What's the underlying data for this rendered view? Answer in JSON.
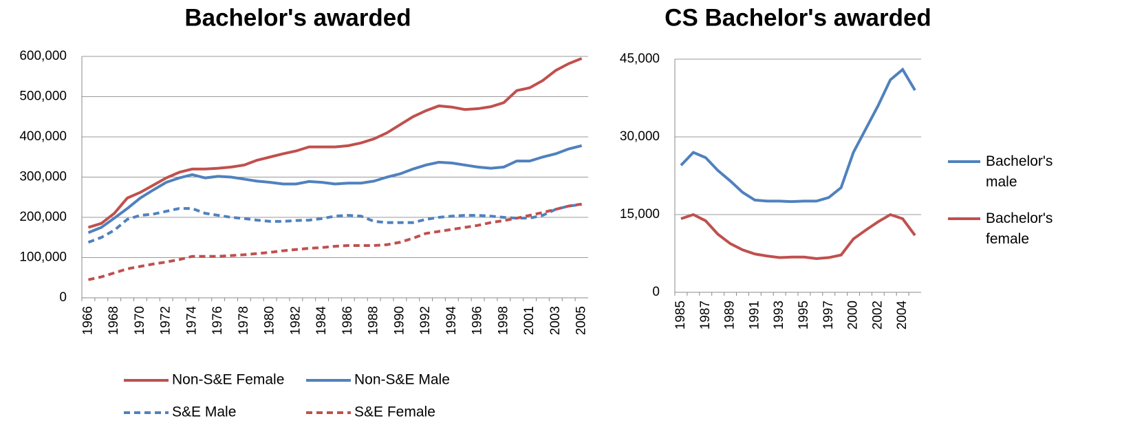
{
  "chart_data": [
    {
      "type": "line",
      "title": "Bachelor's awarded",
      "categories": [
        "1966",
        null,
        "1968",
        null,
        "1970",
        null,
        "1972",
        null,
        "1974",
        null,
        "1976",
        null,
        "1978",
        null,
        "1980",
        null,
        "1982",
        null,
        "1984",
        null,
        "1986",
        null,
        "1988",
        null,
        "1990",
        null,
        "1992",
        null,
        "1994",
        null,
        "1996",
        null,
        "1998",
        null,
        "2001",
        null,
        "2003",
        null,
        "2005"
      ],
      "series": [
        {
          "name": "Non-S&E Female",
          "color": "#c0504d",
          "dashed": false,
          "values": [
            175000,
            185000,
            210000,
            248000,
            262000,
            280000,
            298000,
            312000,
            320000,
            320000,
            322000,
            325000,
            330000,
            342000,
            350000,
            358000,
            365000,
            375000,
            375000,
            375000,
            378000,
            385000,
            395000,
            410000,
            430000,
            450000,
            465000,
            477000,
            474000,
            468000,
            470000,
            475000,
            485000,
            515000,
            522000,
            540000,
            565000,
            582000,
            595000
          ]
        },
        {
          "name": "Non-S&E Male",
          "color": "#4f81bd",
          "dashed": false,
          "values": [
            162000,
            175000,
            198000,
            222000,
            248000,
            268000,
            287000,
            298000,
            306000,
            298000,
            302000,
            300000,
            295000,
            290000,
            287000,
            283000,
            283000,
            289000,
            287000,
            283000,
            285000,
            285000,
            290000,
            300000,
            308000,
            320000,
            330000,
            337000,
            335000,
            330000,
            325000,
            322000,
            325000,
            340000,
            340000,
            350000,
            358000,
            370000,
            378000
          ]
        },
        {
          "name": "S&E Male",
          "color": "#4f81bd",
          "dashed": true,
          "values": [
            138000,
            150000,
            168000,
            195000,
            205000,
            208000,
            215000,
            222000,
            222000,
            210000,
            205000,
            200000,
            197000,
            193000,
            190000,
            190000,
            192000,
            193000,
            197000,
            203000,
            205000,
            203000,
            190000,
            187000,
            187000,
            187000,
            195000,
            200000,
            203000,
            205000,
            205000,
            203000,
            200000,
            198000,
            198000,
            205000,
            220000,
            228000,
            232000
          ]
        },
        {
          "name": "S&E Female",
          "color": "#c0504d",
          "dashed": true,
          "values": [
            45000,
            52000,
            62000,
            72000,
            78000,
            84000,
            89000,
            95000,
            103000,
            103000,
            103000,
            105000,
            107000,
            110000,
            113000,
            117000,
            120000,
            123000,
            125000,
            128000,
            130000,
            130000,
            130000,
            132000,
            138000,
            148000,
            160000,
            165000,
            170000,
            175000,
            180000,
            187000,
            192000,
            198000,
            205000,
            212000,
            220000,
            228000,
            233000
          ]
        }
      ],
      "ylim": [
        0,
        600000
      ],
      "yticks": [
        0,
        {
          "value": 100000,
          "label": "100,000"
        },
        {
          "value": 200000,
          "label": "200,000"
        },
        {
          "value": 300000,
          "label": "300,000"
        },
        {
          "value": 400000,
          "label": "400,000"
        },
        {
          "value": 500000,
          "label": "500,000"
        },
        {
          "value": 600000,
          "label": "600,000"
        }
      ],
      "grid": true,
      "legend": "bottom"
    },
    {
      "type": "line",
      "title": "CS Bachelor's awarded",
      "categories": [
        "1985",
        null,
        "1987",
        null,
        "1989",
        null,
        "1991",
        null,
        "1993",
        null,
        "1995",
        null,
        "1997",
        null,
        "2000",
        null,
        "2002",
        null,
        "2004",
        null
      ],
      "series": [
        {
          "name": "Bachelor's male",
          "color": "#4f81bd",
          "dashed": false,
          "values": [
            24500,
            27000,
            26000,
            23500,
            21500,
            19300,
            17800,
            17600,
            17600,
            17500,
            17600,
            17600,
            18300,
            20200,
            27000,
            31500,
            36000,
            41000,
            43000,
            39000
          ]
        },
        {
          "name": "Bachelor's female",
          "color": "#c0504d",
          "dashed": false,
          "values": [
            14200,
            15000,
            13800,
            11200,
            9400,
            8200,
            7400,
            7000,
            6700,
            6800,
            6800,
            6500,
            6700,
            7200,
            10300,
            12000,
            13600,
            15000,
            14200,
            11000
          ]
        }
      ],
      "ylim": [
        0,
        45000
      ],
      "yticks": [
        0,
        {
          "value": 15000,
          "label": "15,000"
        },
        {
          "value": 30000,
          "label": "30,000"
        },
        {
          "value": 45000,
          "label": "45,000"
        }
      ],
      "grid": true,
      "legend": "right"
    }
  ]
}
